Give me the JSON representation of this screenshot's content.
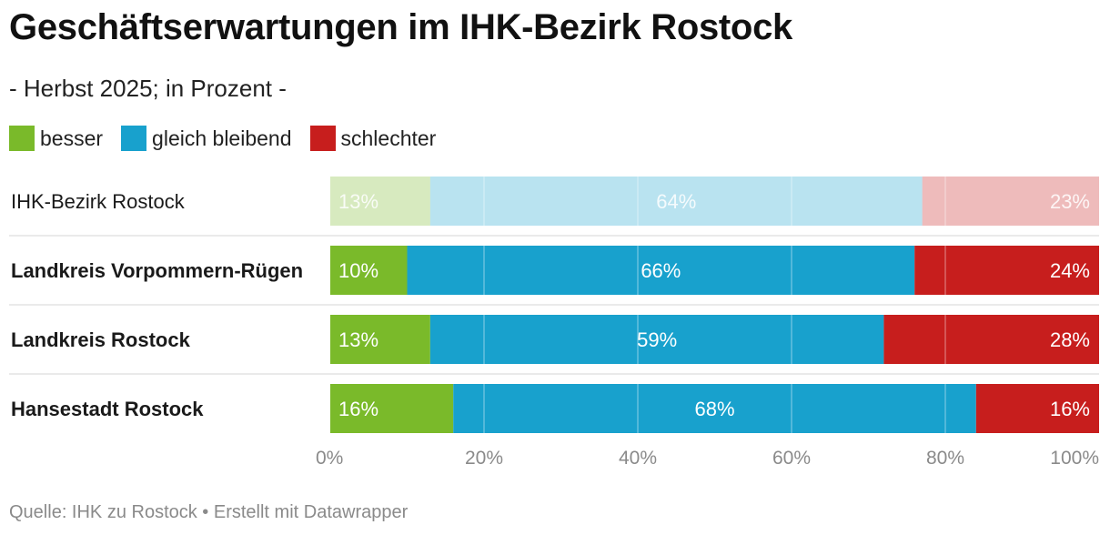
{
  "title": "Geschäftserwartungen im IHK-Bezirk Rostock",
  "subtitle": "- Herbst 2025; in Prozent -",
  "source": "Quelle: IHK zu Rostock • Erstellt mit Datawrapper",
  "colors": {
    "besser": "#7aba2a",
    "gleich bleibend": "#18a1cd",
    "schlechter": "#c71e1d"
  },
  "chart_data": {
    "type": "bar",
    "orientation": "horizontal",
    "stacked": true,
    "categories": [
      "IHK-Bezirk Rostock",
      "Landkreis Vorpommern-Rügen",
      "Landkreis Rostock",
      "Hansestadt Rostock"
    ],
    "highlighted": [
      false,
      true,
      true,
      true
    ],
    "series": [
      {
        "name": "besser",
        "values": [
          13,
          10,
          13,
          16
        ],
        "labels": [
          "13%",
          "10%",
          "13%",
          "16%"
        ]
      },
      {
        "name": "gleich bleibend",
        "values": [
          64,
          66,
          59,
          68
        ],
        "labels": [
          "64%",
          "66%",
          "59%",
          "68%"
        ]
      },
      {
        "name": "schlechter",
        "values": [
          23,
          24,
          28,
          16
        ],
        "labels": [
          "23%",
          "24%",
          "28%",
          "16%"
        ]
      }
    ],
    "xlim": [
      0,
      100
    ],
    "xticks": [
      "0%",
      "20%",
      "40%",
      "60%",
      "80%",
      "100%"
    ],
    "grid": true,
    "legend_position": "top-left"
  }
}
